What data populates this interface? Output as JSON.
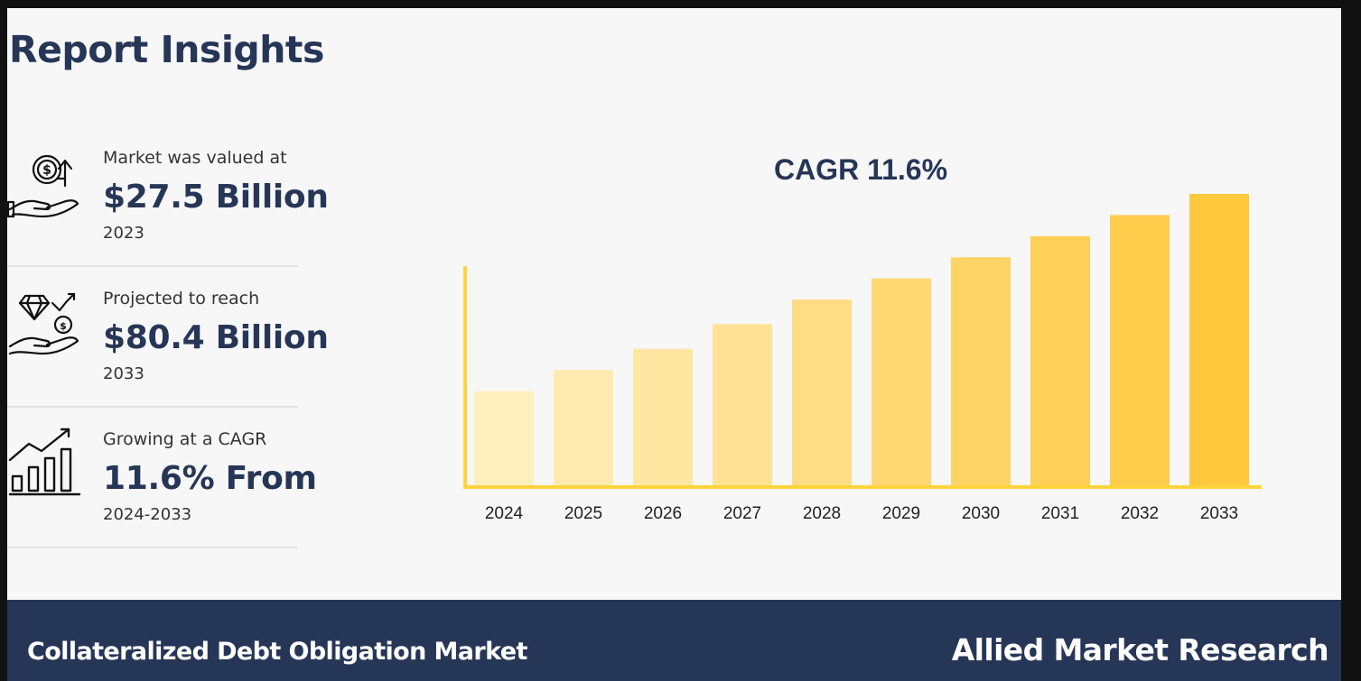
{
  "header": {
    "title": "Report Insights"
  },
  "stats": [
    {
      "label": "Market was valued at",
      "value": "$27.5 Billion",
      "year": "2023",
      "icon": "money-hand-icon"
    },
    {
      "label": "Projected to reach",
      "value": "$80.4 Billion",
      "year": "2033",
      "icon": "diamond-hand-icon"
    },
    {
      "label": "Growing at a CAGR",
      "value": "11.6% From",
      "year": "2024-2033",
      "icon": "growth-chart-icon"
    }
  ],
  "chart_data": {
    "type": "bar",
    "title": "CAGR 11.6%",
    "categories": [
      "2024",
      "2025",
      "2026",
      "2027",
      "2028",
      "2029",
      "2030",
      "2031",
      "2032",
      "2033"
    ],
    "values": [
      27,
      33,
      39,
      46,
      53,
      59,
      65,
      71,
      77,
      83
    ],
    "ylim": [
      0,
      100
    ],
    "grid": false,
    "axis_color": "#ffd43b",
    "bar_colors": [
      "#fff0bd",
      "#ffebb0",
      "#ffe6a1",
      "#ffe293",
      "#ffdd84",
      "#ffd874",
      "#ffd466",
      "#ffd058",
      "#ffcc4b",
      "#ffc83d"
    ]
  },
  "footer": {
    "market_name": "Collateralized Debt Obligation Market",
    "brand": "Allied Market Research"
  },
  "colors": {
    "navy": "#263657",
    "background": "#f7f7f8"
  }
}
